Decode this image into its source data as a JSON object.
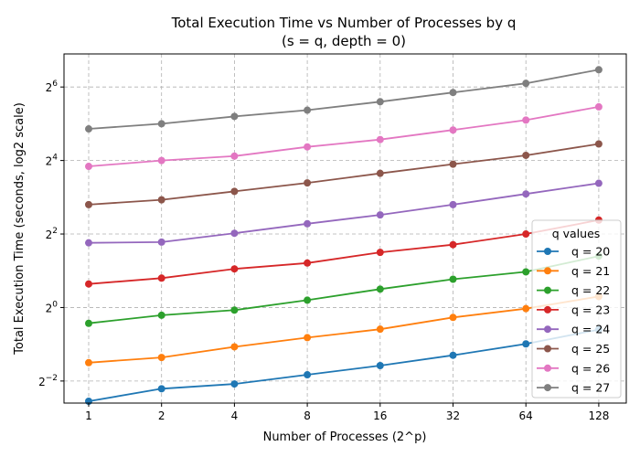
{
  "chart_data": {
    "type": "line",
    "title_line1": "Total Execution Time vs Number of Processes by q",
    "title_line2": "(s = q, depth = 0)",
    "xlabel": "Number of Processes (2^p)",
    "ylabel": "Total Execution Time (seconds, log2 scale)",
    "x_categories": [
      "1",
      "2",
      "4",
      "8",
      "16",
      "32",
      "64",
      "128"
    ],
    "y_scale": "log2",
    "y_ticks": [
      {
        "exp": -2,
        "base": "2",
        "sup": "−2"
      },
      {
        "exp": 0,
        "base": "2",
        "sup": "0"
      },
      {
        "exp": 2,
        "base": "2",
        "sup": "2"
      },
      {
        "exp": 4,
        "base": "2",
        "sup": "4"
      },
      {
        "exp": 6,
        "base": "2",
        "sup": "6"
      }
    ],
    "y_exp_range": [
      -2.6,
      6.9
    ],
    "grid": true,
    "legend_title": "q values",
    "legend_position": "lower-right",
    "series": [
      {
        "name": "q = 20",
        "color": "#1f77b4",
        "log2_values": [
          -2.55,
          -2.21,
          -2.08,
          -1.83,
          -1.58,
          -1.3,
          -0.99,
          -0.6
        ]
      },
      {
        "name": "q = 21",
        "color": "#ff7f0e",
        "log2_values": [
          -1.5,
          -1.36,
          -1.07,
          -0.82,
          -0.59,
          -0.27,
          -0.03,
          0.3
        ]
      },
      {
        "name": "q = 22",
        "color": "#2ca02c",
        "log2_values": [
          -0.43,
          -0.21,
          -0.07,
          0.2,
          0.5,
          0.77,
          0.97,
          1.4
        ]
      },
      {
        "name": "q = 23",
        "color": "#d62728",
        "log2_values": [
          0.64,
          0.8,
          1.05,
          1.21,
          1.5,
          1.71,
          2.0,
          2.38
        ]
      },
      {
        "name": "q = 24",
        "color": "#9467bd",
        "log2_values": [
          1.76,
          1.78,
          2.02,
          2.28,
          2.52,
          2.8,
          3.09,
          3.38
        ]
      },
      {
        "name": "q = 25",
        "color": "#8c564b",
        "log2_values": [
          2.8,
          2.93,
          3.16,
          3.39,
          3.65,
          3.9,
          4.14,
          4.45
        ]
      },
      {
        "name": "q = 26",
        "color": "#e377c2",
        "log2_values": [
          3.84,
          4.0,
          4.12,
          4.37,
          4.57,
          4.83,
          5.1,
          5.46
        ]
      },
      {
        "name": "q = 27",
        "color": "#7f7f7f",
        "log2_values": [
          4.86,
          5.0,
          5.2,
          5.37,
          5.6,
          5.85,
          6.1,
          6.47
        ]
      }
    ]
  }
}
